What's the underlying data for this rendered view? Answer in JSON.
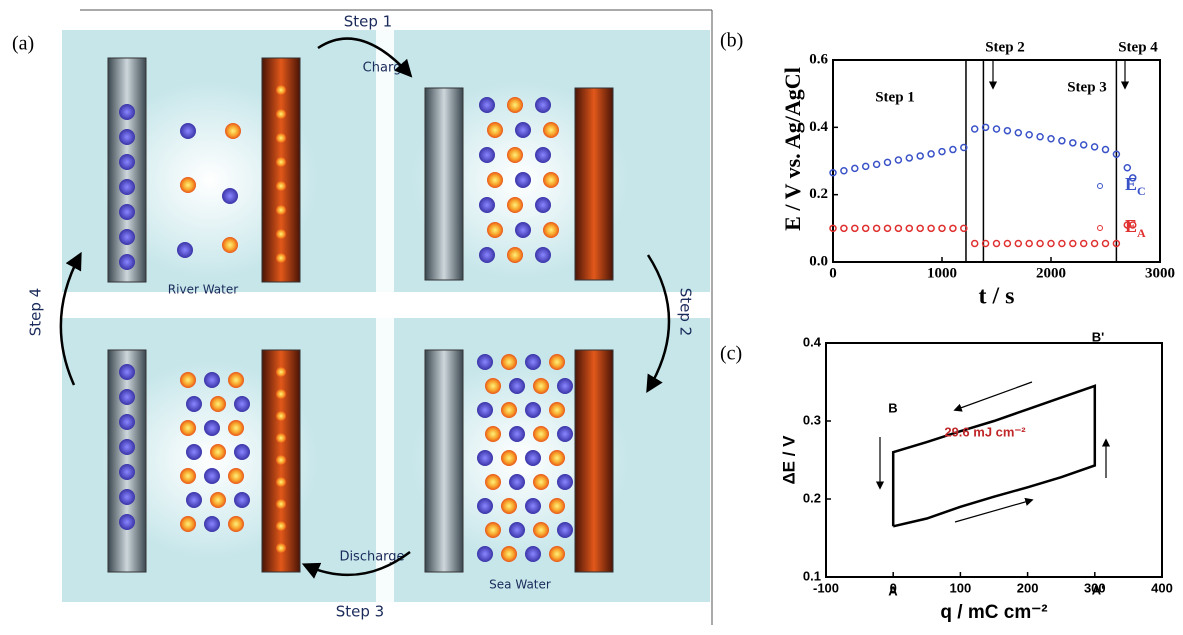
{
  "diagram": {
    "panel_label": "(a)",
    "step_1": "Step 1",
    "charge": "Charge",
    "step_2": "Step 2",
    "step_3": "Step 3",
    "discharge": "Discharge",
    "step_4": "Step 4",
    "river_water": "River Water",
    "sea_water": "Sea Water"
  },
  "chart_data": [
    {
      "type": "scatter",
      "panel_label": "(b)",
      "y_label": "E / V vs. Ag/AgCl",
      "x_label": "t / s",
      "xlim": [
        0,
        3000
      ],
      "xticks": [
        0,
        1000,
        2000,
        3000
      ],
      "ylim": [
        0,
        0.6
      ],
      "yticks": [
        {
          "value": 0,
          "label": "0.0"
        },
        0.2,
        0.4,
        0.6
      ],
      "annotations": [
        "Step 1",
        "Step 2",
        "Step 3",
        "Step 4"
      ],
      "vlines": [
        1220,
        1380,
        2600
      ],
      "series": [
        {
          "name": "EC",
          "color": "#3a52c8",
          "x": [
            0,
            100,
            200,
            300,
            400,
            500,
            600,
            700,
            800,
            900,
            1000,
            1100,
            1200,
            1300,
            1400,
            1500,
            1600,
            1700,
            1800,
            1900,
            2000,
            2100,
            2200,
            2300,
            2400,
            2500,
            2600,
            2700,
            2750
          ],
          "values": [
            0.265,
            0.271,
            0.278,
            0.284,
            0.29,
            0.296,
            0.303,
            0.309,
            0.315,
            0.321,
            0.328,
            0.334,
            0.34,
            0.395,
            0.4,
            0.395,
            0.39,
            0.384,
            0.378,
            0.372,
            0.366,
            0.36,
            0.354,
            0.348,
            0.342,
            0.334,
            0.32,
            0.28,
            0.25
          ]
        },
        {
          "name": "EA",
          "color": "#e03030",
          "x": [
            0,
            100,
            200,
            300,
            400,
            500,
            600,
            700,
            800,
            900,
            1000,
            1100,
            1200,
            1300,
            1400,
            1500,
            1600,
            1700,
            1800,
            1900,
            2000,
            2100,
            2200,
            2300,
            2400,
            2500,
            2600,
            2700,
            2750
          ],
          "values": [
            0.1,
            0.1,
            0.1,
            0.1,
            0.1,
            0.1,
            0.1,
            0.1,
            0.1,
            0.1,
            0.1,
            0.1,
            0.1,
            0.055,
            0.055,
            0.055,
            0.055,
            0.055,
            0.055,
            0.055,
            0.055,
            0.055,
            0.055,
            0.055,
            0.055,
            0.055,
            0.055,
            0.11,
            0.11
          ]
        }
      ]
    },
    {
      "type": "line",
      "panel_label": "(c)",
      "y_label": "ΔE / V",
      "x_label": "q / mC cm⁻²",
      "xlim": [
        -100,
        400
      ],
      "xticks": [
        -100,
        0,
        100,
        200,
        300,
        400
      ],
      "ylim": [
        0.1,
        0.4
      ],
      "yticks": [
        0.1,
        0.2,
        0.3,
        0.4
      ],
      "point_labels": [
        "A",
        "A'",
        "B'",
        "B"
      ],
      "energy_label": "29.6 mJ cm⁻²",
      "series": [
        {
          "color": "#000000",
          "x": [
            0,
            50,
            100,
            150,
            200,
            250,
            300,
            300,
            250,
            200,
            150,
            100,
            50,
            0,
            0
          ],
          "values": [
            0.165,
            0.175,
            0.19,
            0.203,
            0.215,
            0.228,
            0.243,
            0.345,
            0.33,
            0.315,
            0.3,
            0.287,
            0.273,
            0.26,
            0.165
          ]
        }
      ]
    }
  ]
}
